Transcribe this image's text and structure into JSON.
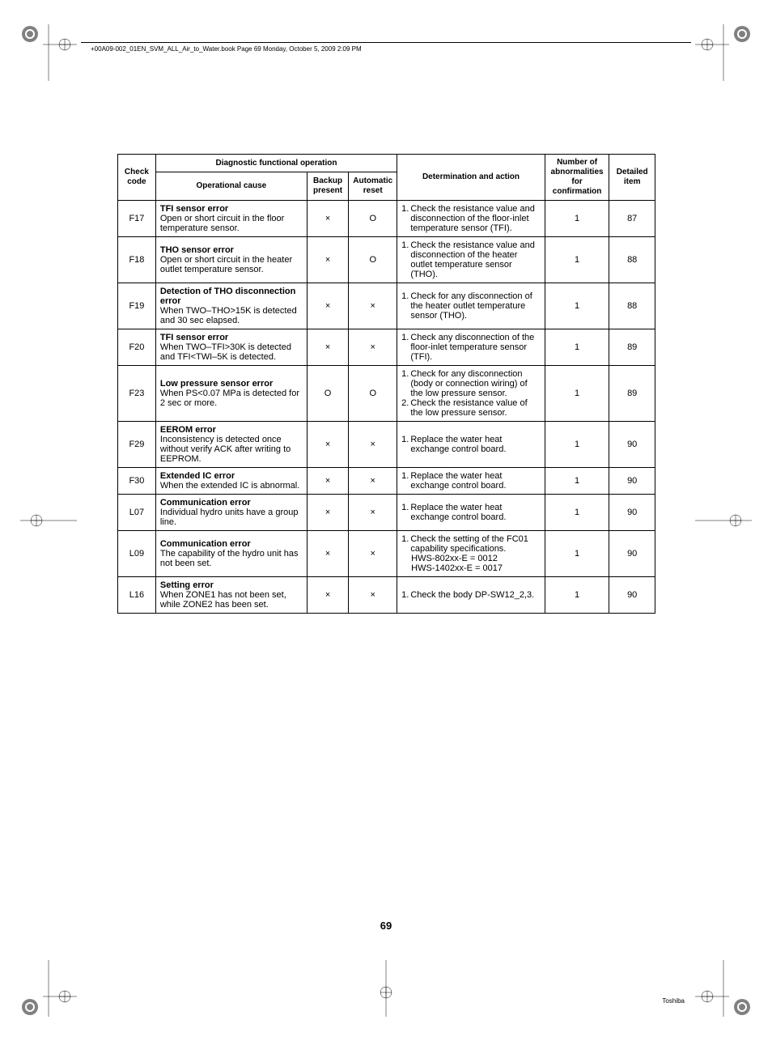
{
  "header": {
    "book_info": "+00A09-002_01EN_SVM_ALL_Air_to_Water.book  Page 69  Monday, October 5, 2009  2:09 PM"
  },
  "table": {
    "columns": {
      "check_code": "Check code",
      "diag_op": "Diagnostic functional operation",
      "op_cause": "Operational cause",
      "backup": "Backup present",
      "auto_reset": "Automatic reset",
      "det_action": "Determination and action",
      "abn": "Number of abnormalities for confirmation",
      "detailed": "Detailed item"
    },
    "symbols": {
      "x": "×",
      "o": "O"
    },
    "rows": [
      {
        "code": "F17",
        "cause_title": "TFI sensor error",
        "cause_body": "Open or short circuit in the floor temperature sensor.",
        "backup": "×",
        "auto": "O",
        "actions": [
          {
            "n": "1.",
            "t": "Check the resistance value and disconnection of the floor-inlet temperature sensor (TFI)."
          }
        ],
        "abn": "1",
        "item": "87"
      },
      {
        "code": "F18",
        "cause_title": "THO sensor error",
        "cause_body": "Open or short circuit in the heater outlet temperature sensor.",
        "backup": "×",
        "auto": "O",
        "actions": [
          {
            "n": "1.",
            "t": "Check the resistance value and disconnection of the heater outlet temperature sensor (THO)."
          }
        ],
        "abn": "1",
        "item": "88"
      },
      {
        "code": "F19",
        "cause_title": "Detection of THO disconnection error",
        "cause_body": "When TWO–THO>15K is detected and 30 sec elapsed.",
        "backup": "×",
        "auto": "×",
        "actions": [
          {
            "n": "1.",
            "t": "Check for any disconnection of the heater outlet temperature sensor (THO)."
          }
        ],
        "abn": "1",
        "item": "88"
      },
      {
        "code": "F20",
        "cause_title": "TFI sensor error",
        "cause_body": "When TWO–TFI>30K is detected and TFI<TWI–5K is detected.",
        "backup": "×",
        "auto": "×",
        "actions": [
          {
            "n": "1.",
            "t": "Check any disconnection of the floor-inlet temperature sensor (TFI)."
          }
        ],
        "abn": "1",
        "item": "89"
      },
      {
        "code": "F23",
        "cause_title": "Low pressure sensor error",
        "cause_body": "When PS<0.07 MPa is detected for 2 sec or more.",
        "backup": "O",
        "auto": "O",
        "actions": [
          {
            "n": "1.",
            "t": "Check for any disconnection (body or connection wiring) of the low pressure sensor."
          },
          {
            "n": "2.",
            "t": "Check the resistance value of the low pressure sensor."
          }
        ],
        "abn": "1",
        "item": "89"
      },
      {
        "code": "F29",
        "cause_title": "EEROM error",
        "cause_body": "Inconsistency is detected once without verify ACK after writing to EEPROM.",
        "backup": "×",
        "auto": "×",
        "actions": [
          {
            "n": "1.",
            "t": "Replace the water heat exchange control board."
          }
        ],
        "abn": "1",
        "item": "90"
      },
      {
        "code": "F30",
        "cause_title": "Extended IC error",
        "cause_body": "When the extended IC is abnormal.",
        "backup": "×",
        "auto": "×",
        "actions": [
          {
            "n": "1.",
            "t": "Replace the water heat exchange control board."
          }
        ],
        "abn": "1",
        "item": "90"
      },
      {
        "code": "L07",
        "cause_title": "Communication error",
        "cause_body": "Individual hydro units have a group line.",
        "backup": "×",
        "auto": "×",
        "actions": [
          {
            "n": "1.",
            "t": "Replace the water heat exchange control board."
          }
        ],
        "abn": "1",
        "item": "90"
      },
      {
        "code": "L09",
        "cause_title": "Communication error",
        "cause_body": "The capability of the hydro unit has not been set.",
        "backup": "×",
        "auto": "×",
        "actions": [
          {
            "n": "1.",
            "t": "Check the setting of the FC01 capability specifications."
          }
        ],
        "extra_indent": [
          "HWS-802xx-E = 0012",
          "HWS-1402xx-E = 0017"
        ],
        "abn": "1",
        "item": "90"
      },
      {
        "code": "L16",
        "cause_title": "Setting error",
        "cause_body": "When ZONE1 has not been set, while ZONE2 has been set.",
        "backup": "×",
        "auto": "×",
        "actions": [
          {
            "n": "1.",
            "t": "Check the body DP-SW12_2,3."
          }
        ],
        "abn": "1",
        "item": "90"
      }
    ]
  },
  "page_number": "69",
  "footer_brand": "Toshiba",
  "colors": {
    "text": "#000000",
    "background": "#ffffff",
    "border": "#000000",
    "crop_gray": "#808080"
  }
}
